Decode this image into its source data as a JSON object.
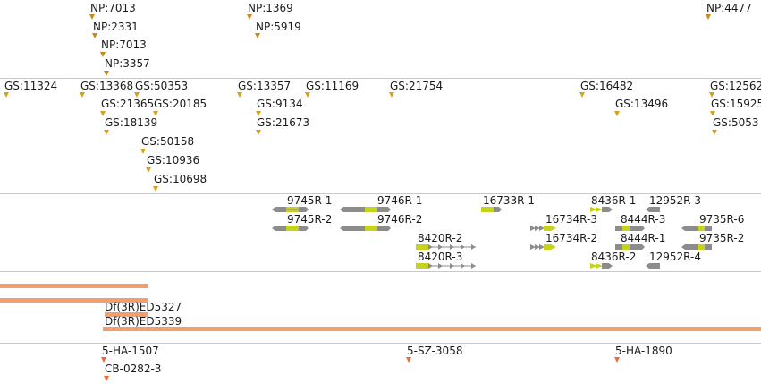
{
  "np_track": {
    "features": [
      {
        "label": "NP:7013"
      },
      {
        "label": "NP:2331"
      },
      {
        "label": "NP:7013"
      },
      {
        "label": "NP:3357"
      },
      {
        "label": "NP:1369"
      },
      {
        "label": "NP:5919"
      },
      {
        "label": "NP:4477"
      }
    ]
  },
  "gs_track": {
    "features": [
      {
        "label": "GS:11324"
      },
      {
        "label": "GS:13368"
      },
      {
        "label": "GS:50353"
      },
      {
        "label": "GS:21365"
      },
      {
        "label": "GS:20185"
      },
      {
        "label": "GS:18139"
      },
      {
        "label": "GS:50158"
      },
      {
        "label": "GS:10936"
      },
      {
        "label": "GS:10698"
      },
      {
        "label": "GS:13357"
      },
      {
        "label": "GS:9134"
      },
      {
        "label": "GS:21673"
      },
      {
        "label": "GS:11169"
      },
      {
        "label": "GS:21754"
      },
      {
        "label": "GS:16482"
      },
      {
        "label": "GS:13496"
      },
      {
        "label": "GS:12562"
      },
      {
        "label": "GS:15925"
      },
      {
        "label": "GS:5053"
      }
    ]
  },
  "rnai_track": {
    "features": [
      {
        "label": "9745R-1"
      },
      {
        "label": "9745R-2"
      },
      {
        "label": "9746R-1"
      },
      {
        "label": "9746R-2"
      },
      {
        "label": "16733R-1"
      },
      {
        "label": "8420R-2"
      },
      {
        "label": "8420R-3"
      },
      {
        "label": "16734R-3"
      },
      {
        "label": "16734R-2"
      },
      {
        "label": "8436R-1"
      },
      {
        "label": "8436R-2"
      },
      {
        "label": "12952R-3"
      },
      {
        "label": "12952R-4"
      },
      {
        "label": "8444R-3"
      },
      {
        "label": "8444R-1"
      },
      {
        "label": "9735R-6"
      },
      {
        "label": "9735R-2"
      }
    ]
  },
  "deficiency_track": {
    "features": [
      {
        "label": "Df(3R)ED5327"
      },
      {
        "label": "Df(3R)ED5339"
      }
    ]
  },
  "insertion_track": {
    "features": [
      {
        "label": "5-HA-1507"
      },
      {
        "label": "CB-0282-3"
      },
      {
        "label": "5-SZ-3058"
      },
      {
        "label": "5-HA-1890"
      }
    ]
  },
  "colors": {
    "np_marker": "#c58a1a",
    "gs_marker": "#d6a21d",
    "insertion_marker": "#ee6a3a",
    "deficiency_bar": "#f0a070",
    "gene_gray": "#8c8c8c",
    "gene_green": "#c6d21c",
    "separator": "#c8c8c8"
  }
}
